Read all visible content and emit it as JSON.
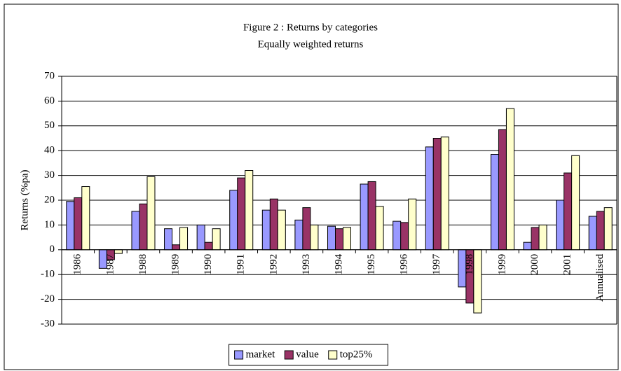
{
  "chart_data": {
    "type": "bar",
    "title": "Figure 2 : Returns by categories",
    "subtitle": "Equally weighted returns",
    "y_label": "Returns (%pa)",
    "categories": [
      "1986",
      "1987",
      "1988",
      "1989",
      "1990",
      "1991",
      "1992",
      "1993",
      "1994",
      "1995",
      "1996",
      "1997",
      "1998",
      "1999",
      "2000",
      "2001",
      "Annualised"
    ],
    "series": [
      {
        "name": "market",
        "color": "#9999ff",
        "values": [
          19.5,
          -7.5,
          15.5,
          8.5,
          10,
          24,
          16,
          12,
          9.5,
          26.5,
          11.5,
          41.5,
          -15,
          38.5,
          3,
          20,
          13.5
        ]
      },
      {
        "name": "value",
        "color": "#993366",
        "values": [
          21,
          -4,
          18.5,
          2,
          3,
          29,
          20.5,
          17,
          8.5,
          27.5,
          11,
          45,
          -21.5,
          48.5,
          9,
          31,
          15.5
        ]
      },
      {
        "name": "top25%",
        "color": "#ffffcc",
        "values": [
          25.5,
          -1.5,
          29.5,
          9,
          8.5,
          32,
          16,
          10,
          9,
          17.5,
          20.5,
          45.5,
          -25.5,
          57,
          10,
          38,
          17
        ]
      }
    ],
    "ylim": [
      -30,
      70
    ],
    "yticks": [
      -30,
      -20,
      -10,
      0,
      10,
      20,
      30,
      40,
      50,
      60,
      70
    ],
    "grid": true,
    "legend": "bottom"
  }
}
